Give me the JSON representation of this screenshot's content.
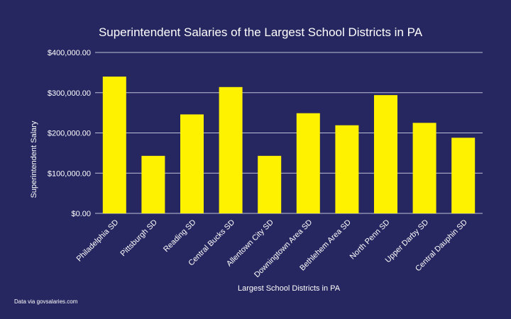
{
  "chart_data": {
    "type": "bar",
    "title": "Superintendent Salaries of the Largest School Districts in PA",
    "xlabel": "Largest School Districts in PA",
    "ylabel": "Superintendent Salary",
    "categories": [
      "Philadelphia SD",
      "Pittsburgh SD",
      "Reading SD",
      "Central Bucks SD",
      "Allentown City SD",
      "Downingtown Area SD",
      "Bethlehem Area SD",
      "North Penn SD",
      "Upper Darby SD",
      "Central Dauphin SD"
    ],
    "values": [
      340000,
      143000,
      246000,
      314000,
      143000,
      249000,
      219000,
      294000,
      225000,
      188000
    ],
    "ylim": [
      0,
      400000
    ],
    "yticks": [
      0,
      100000,
      200000,
      300000,
      400000
    ],
    "ytick_labels": [
      "$0.00",
      "$100,000.00",
      "$200,000.00",
      "$300,000.00",
      "$400,000.00"
    ],
    "grid": true,
    "legend": "none",
    "colors": {
      "bar": "#FFF200",
      "background": "#262660",
      "grid": "#BFC2D6",
      "text": "#FFFFFF"
    }
  },
  "footnote": "Data via govsalaries.com"
}
